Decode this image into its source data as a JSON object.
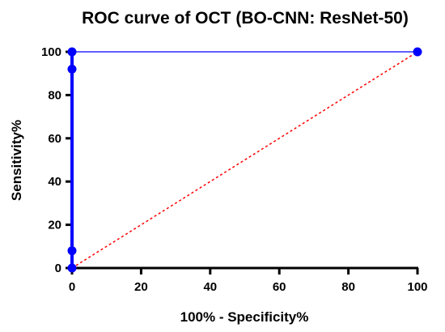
{
  "chart_data": {
    "type": "line",
    "title": "ROC curve of OCT (BO-CNN: ResNet-50)",
    "xlabel": "100% - Specificity%",
    "ylabel": "Sensitivity%",
    "xlim": [
      0,
      100
    ],
    "ylim": [
      0,
      100
    ],
    "xticks": [
      "0",
      "20",
      "40",
      "60",
      "80",
      "100"
    ],
    "yticks": [
      "0",
      "20",
      "40",
      "60",
      "80",
      "100"
    ],
    "grid": false,
    "series": [
      {
        "kind": "roc-curve",
        "color": "#0000ff",
        "style": "solid-with-markers",
        "x": [
          0,
          0,
          0,
          0,
          100
        ],
        "y": [
          0,
          8,
          92,
          100,
          100
        ]
      },
      {
        "kind": "reference-diagonal",
        "color": "#ff0000",
        "style": "dashed",
        "x": [
          0,
          100
        ],
        "y": [
          0,
          100
        ]
      }
    ]
  }
}
